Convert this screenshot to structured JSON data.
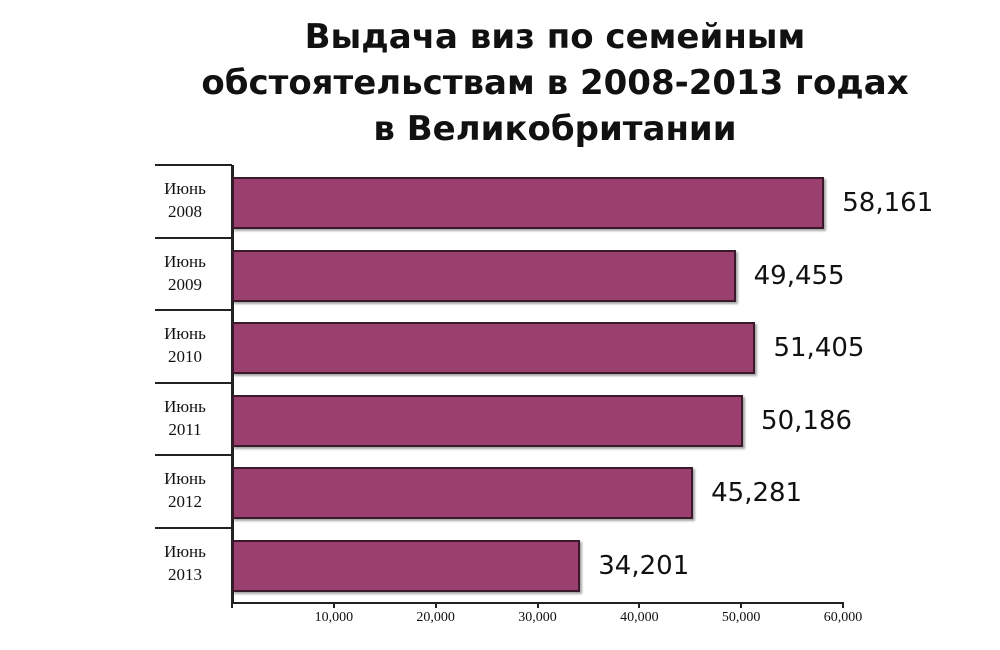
{
  "chart_data": {
    "type": "hbar",
    "title": "Выдача виз по семейным обстоятельствам в 2008-2013 годах в Великобритании",
    "categories": [
      "Июнь 2008",
      "Июнь 2009",
      "Июнь 2010",
      "Июнь 2011",
      "Июнь 2012",
      "Июнь 2013"
    ],
    "values": [
      58161,
      49455,
      51405,
      50186,
      45281,
      34201
    ],
    "value_labels": [
      "58,161",
      "49,455",
      "51,405",
      "50,186",
      "45,281",
      "34,201"
    ],
    "color": "#9b3f6f",
    "xlim": [
      0,
      60000
    ],
    "xticks": [
      {
        "value": 10000,
        "label": "10,000"
      },
      {
        "value": 20000,
        "label": "20,000"
      },
      {
        "value": 30000,
        "label": "30,000"
      },
      {
        "value": 40000,
        "label": "40,000"
      },
      {
        "value": 50000,
        "label": "50,000"
      },
      {
        "value": 60000,
        "label": "60,000"
      }
    ]
  }
}
